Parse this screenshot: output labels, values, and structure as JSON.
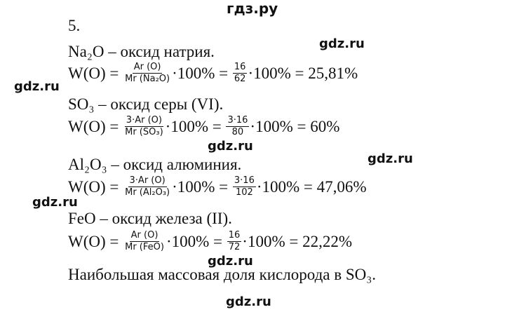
{
  "header": "гдз.ру",
  "task_number": "5.",
  "watermark": "gdz.ru",
  "blocks": [
    {
      "title": "Na₂O – оксид натрия.",
      "lhs": "W(O) =",
      "f1_num": "Ar (O)",
      "f1_den": "Mr (Na₂O)",
      "mid": "·100% =",
      "f2_num": "16",
      "f2_den": "62",
      "result": "·100% = 25,81%"
    },
    {
      "title": "SO₃ – оксид серы (VI).",
      "lhs": "W(O) =",
      "f1_num": "3·Ar (O)",
      "f1_den": "Mr (SO₃)",
      "mid": "·100% =",
      "f2_num": "3·16",
      "f2_den": "80",
      "result": "·100% = 60%"
    },
    {
      "title": "Al₂O₃ – оксид алюминия.",
      "lhs": "W(O) =",
      "f1_num": "3·Ar (O)",
      "f1_den": "Mr (Al₂O₃)",
      "mid": "·100% =",
      "f2_num": "3·16",
      "f2_den": "102",
      "result": "·100% = 47,06%"
    },
    {
      "title": "FeO – оксид железа (II).",
      "lhs": "W(O) =",
      "f1_num": "Ar (O)",
      "f1_den": "Mr (FeO)",
      "mid": "·100% =",
      "f2_num": "16",
      "f2_den": "72",
      "result": "·100% = 22,22%"
    }
  ],
  "conclusion": "Наибольшая массовая доля кислорода в SO₃."
}
